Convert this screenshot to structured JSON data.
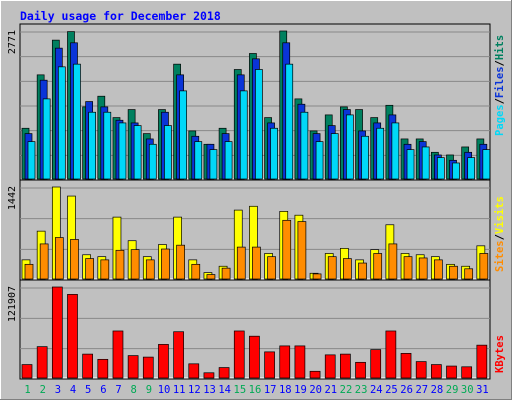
{
  "chart_data": [
    {
      "type": "bar",
      "title": "Daily usage for December 2018",
      "y_max_label": "2771",
      "ylim": [
        0,
        2771
      ],
      "legend": [
        "Pages",
        "/",
        "Files",
        "/",
        "Hits"
      ],
      "legend_placement": "right",
      "categories": [
        "1",
        "2",
        "3",
        "4",
        "5",
        "6",
        "7",
        "8",
        "9",
        "10",
        "11",
        "12",
        "13",
        "14",
        "15",
        "16",
        "17",
        "18",
        "19",
        "20",
        "21",
        "22",
        "23",
        "24",
        "25",
        "26",
        "27",
        "28",
        "29",
        "30",
        "31"
      ],
      "weekend_days": [
        "1",
        "2",
        "8",
        "9",
        "15",
        "16",
        "22",
        "23",
        "29",
        "30"
      ],
      "series": [
        {
          "name": "Hits",
          "values": [
            950,
            1950,
            2600,
            2760,
            1350,
            1550,
            1150,
            1300,
            850,
            1300,
            2150,
            900,
            650,
            950,
            2050,
            2350,
            1150,
            2771,
            1500,
            900,
            1200,
            1350,
            1300,
            1150,
            1380,
            750,
            750,
            500,
            450,
            600,
            750
          ]
        },
        {
          "name": "Files",
          "values": [
            850,
            1850,
            2450,
            2550,
            1450,
            1350,
            1100,
            1050,
            750,
            1250,
            1950,
            800,
            650,
            850,
            1950,
            2250,
            1050,
            2550,
            1400,
            850,
            1000,
            1300,
            900,
            1050,
            1200,
            650,
            700,
            450,
            350,
            500,
            650
          ]
        },
        {
          "name": "Pages",
          "values": [
            700,
            1500,
            2100,
            2150,
            1250,
            1250,
            1050,
            1000,
            650,
            1000,
            1650,
            700,
            550,
            700,
            1650,
            2050,
            950,
            2150,
            1250,
            700,
            850,
            1200,
            800,
            950,
            1050,
            550,
            600,
            400,
            300,
            400,
            550
          ]
        }
      ]
    },
    {
      "type": "bar",
      "y_max_label": "1442",
      "ylim": [
        0,
        1442
      ],
      "legend": [
        "Sites",
        "/",
        "Visits"
      ],
      "legend_placement": "right",
      "categories": [
        "1",
        "2",
        "3",
        "4",
        "5",
        "6",
        "7",
        "8",
        "9",
        "10",
        "11",
        "12",
        "13",
        "14",
        "15",
        "16",
        "17",
        "18",
        "19",
        "20",
        "21",
        "22",
        "23",
        "24",
        "25",
        "26",
        "27",
        "28",
        "29",
        "30",
        "31"
      ],
      "series": [
        {
          "name": "Visits",
          "values": [
            300,
            750,
            1442,
            1300,
            380,
            350,
            970,
            600,
            350,
            540,
            970,
            300,
            100,
            200,
            1080,
            1140,
            400,
            1060,
            1000,
            90,
            400,
            480,
            300,
            460,
            850,
            400,
            380,
            350,
            230,
            200,
            520
          ]
        },
        {
          "name": "Sites",
          "values": [
            230,
            550,
            650,
            620,
            320,
            300,
            450,
            460,
            300,
            470,
            530,
            230,
            70,
            170,
            500,
            500,
            350,
            920,
            900,
            80,
            350,
            320,
            250,
            400,
            550,
            350,
            330,
            300,
            200,
            160,
            400
          ]
        }
      ]
    },
    {
      "type": "bar",
      "y_max_label": "121907",
      "ylim": [
        0,
        121907
      ],
      "legend": [
        "KBytes"
      ],
      "legend_placement": "right",
      "categories": [
        "1",
        "2",
        "3",
        "4",
        "5",
        "6",
        "7",
        "8",
        "9",
        "10",
        "11",
        "12",
        "13",
        "14",
        "15",
        "16",
        "17",
        "18",
        "19",
        "20",
        "21",
        "22",
        "23",
        "24",
        "25",
        "26",
        "27",
        "28",
        "29",
        "30",
        "31"
      ],
      "series": [
        {
          "name": "KBytes",
          "values": [
            18000,
            42000,
            121907,
            112000,
            32000,
            25000,
            63000,
            30000,
            28000,
            45000,
            62000,
            19000,
            7000,
            14000,
            63000,
            56000,
            35000,
            43000,
            43000,
            9000,
            31000,
            32000,
            21000,
            38000,
            63000,
            33000,
            22000,
            18000,
            16000,
            15000,
            44000
          ]
        }
      ]
    }
  ],
  "colors": {
    "background": "#c0c0c0",
    "title_text": "#0000ff",
    "weekday_label": "#0000ff",
    "weekend_label": "#00aa55",
    "hits": "#00805f",
    "files": "#0a34d8",
    "pages": "#00d8f8",
    "visits": "#ffff00",
    "sites": "#ff8c00",
    "kbytes": "#ff0000",
    "gridline": "#888888"
  }
}
